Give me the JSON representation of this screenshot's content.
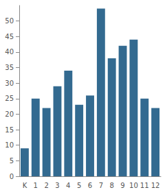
{
  "chart_data": {
    "type": "bar",
    "categories": [
      "K",
      "1",
      "2",
      "3",
      "4",
      "5",
      "6",
      "7",
      "8",
      "9",
      "10",
      "11",
      "12"
    ],
    "values": [
      9,
      25,
      22,
      29,
      34,
      23,
      26,
      54,
      38,
      42,
      44,
      25,
      22
    ],
    "color": "#336a90",
    "ylim": [
      0,
      55
    ],
    "yticks": [
      0,
      5,
      10,
      15,
      20,
      25,
      30,
      35,
      40,
      45,
      50
    ],
    "grid": false
  }
}
